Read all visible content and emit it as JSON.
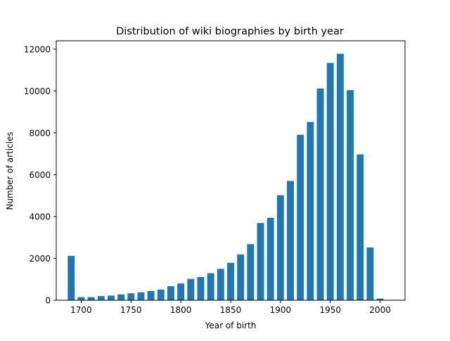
{
  "chart_data": {
    "type": "bar",
    "title": "Distribution of wiki biographies by birth year",
    "xlabel": "Year of birth",
    "ylabel": "Number of articles",
    "xlim": [
      1675,
      2025
    ],
    "ylim": [
      0,
      12400
    ],
    "bar_width_years": 7,
    "xticks": [
      1700,
      1750,
      1800,
      1850,
      1900,
      1950,
      2000
    ],
    "yticks": [
      0,
      2000,
      4000,
      6000,
      8000,
      10000,
      12000
    ],
    "xtick_labels": [
      "1700",
      "1750",
      "1800",
      "1850",
      "1900",
      "1950",
      "2000"
    ],
    "ytick_labels": [
      "0",
      "2000",
      "4000",
      "6000",
      "8000",
      "10000",
      "12000"
    ],
    "grid": false,
    "legend": "none",
    "bar_color": "#1f77b4",
    "series": [
      {
        "x": [
          1690,
          1700,
          1710,
          1720,
          1730,
          1740,
          1750,
          1760,
          1770,
          1780,
          1790,
          1800,
          1810,
          1820,
          1830,
          1840,
          1850,
          1860,
          1870,
          1880,
          1890,
          1900,
          1910,
          1920,
          1930,
          1940,
          1950,
          1960,
          1970,
          1980,
          1990,
          2000
        ],
        "values": [
          2120,
          150,
          150,
          200,
          220,
          280,
          330,
          380,
          440,
          510,
          670,
          800,
          1020,
          1110,
          1290,
          1500,
          1790,
          2190,
          2680,
          3690,
          3940,
          5020,
          5700,
          7910,
          8520,
          10120,
          11340,
          11780,
          10040,
          6970,
          2520,
          80
        ]
      }
    ]
  }
}
